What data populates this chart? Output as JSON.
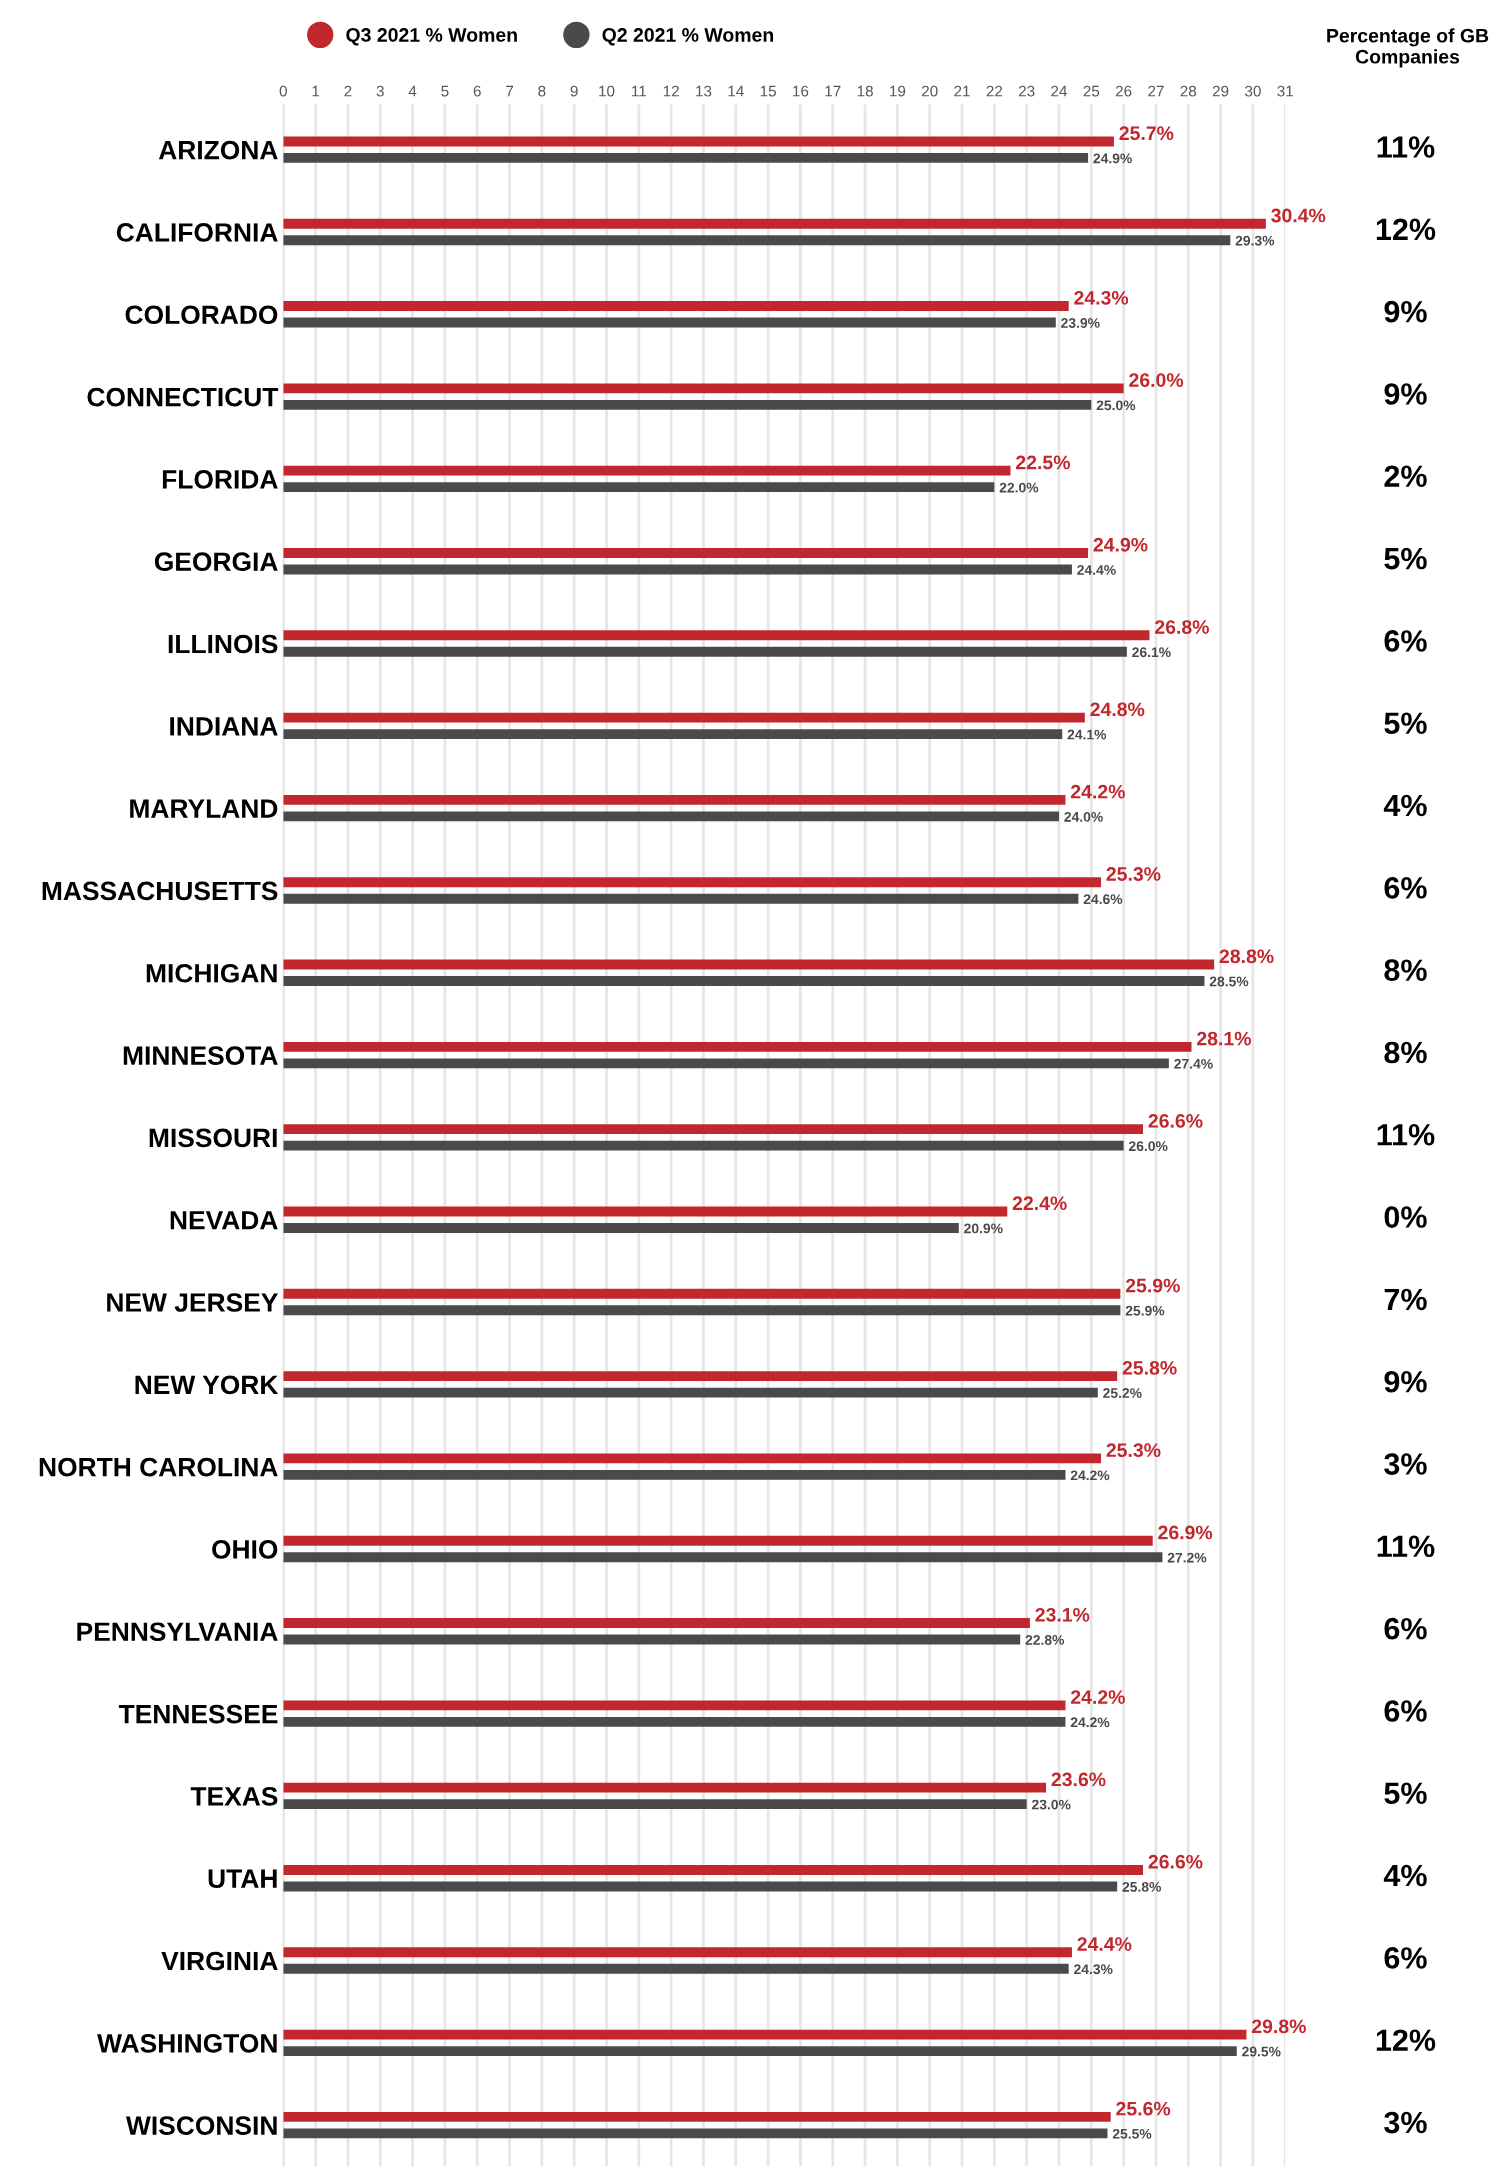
{
  "chart_data": {
    "type": "bar",
    "orientation": "horizontal",
    "categories": [
      "ARIZONA",
      "CALIFORNIA",
      "COLORADO",
      "CONNECTICUT",
      "FLORIDA",
      "GEORGIA",
      "ILLINOIS",
      "INDIANA",
      "MARYLAND",
      "MASSACHUSETTS",
      "MICHIGAN",
      "MINNESOTA",
      "MISSOURI",
      "NEVADA",
      "NEW JERSEY",
      "NEW YORK",
      "NORTH CAROLINA",
      "OHIO",
      "PENNSYLVANIA",
      "TENNESSEE",
      "TEXAS",
      "UTAH",
      "VIRGINIA",
      "WASHINGTON",
      "WISCONSIN"
    ],
    "series": [
      {
        "name": "Q3 2021 % Women",
        "color": "#c1272d",
        "values": [
          25.7,
          30.4,
          24.3,
          26.0,
          22.5,
          24.9,
          26.8,
          24.8,
          24.2,
          25.3,
          28.8,
          28.1,
          26.6,
          22.4,
          25.9,
          25.8,
          25.3,
          26.9,
          23.1,
          24.2,
          23.6,
          26.6,
          24.4,
          29.8,
          25.6
        ],
        "value_labels": [
          "25.7%",
          "30.4%",
          "24.3%",
          "26.0%",
          "22.5%",
          "24.9%",
          "26.8%",
          "24.8%",
          "24.2%",
          "25.3%",
          "28.8%",
          "28.1%",
          "26.6%",
          "22.4%",
          "25.9%",
          "25.8%",
          "25.3%",
          "26.9%",
          "23.1%",
          "24.2%",
          "23.6%",
          "26.6%",
          "24.4%",
          "29.8%",
          "25.6%"
        ]
      },
      {
        "name": "Q2 2021 % Women",
        "color": "#4a4a4a",
        "values": [
          24.9,
          29.3,
          23.9,
          25.0,
          22.0,
          24.4,
          26.1,
          24.1,
          24.0,
          24.6,
          28.5,
          27.4,
          26.0,
          20.9,
          25.9,
          25.2,
          24.2,
          27.2,
          22.8,
          24.2,
          23.0,
          25.8,
          24.3,
          29.5,
          25.5
        ],
        "value_labels": [
          "24.9%",
          "29.3%",
          "23.9%",
          "25.0%",
          "22.0%",
          "24.4%",
          "26.1%",
          "24.1%",
          "24.0%",
          "24.6%",
          "28.5%",
          "27.4%",
          "26.0%",
          "20.9%",
          "25.9%",
          "25.2%",
          "24.2%",
          "27.2%",
          "22.8%",
          "24.2%",
          "23.0%",
          "25.8%",
          "24.3%",
          "29.5%",
          "25.5%"
        ]
      }
    ],
    "xlim": [
      0,
      31
    ],
    "xticks": [
      0,
      1,
      2,
      3,
      4,
      5,
      6,
      7,
      8,
      9,
      10,
      11,
      12,
      13,
      14,
      15,
      16,
      17,
      18,
      19,
      20,
      21,
      22,
      23,
      24,
      25,
      26,
      27,
      28,
      29,
      30,
      31
    ],
    "grid": "x",
    "legend": "top",
    "annotations": [
      "Percentage of GB Companies",
      "11%",
      "12%",
      "9%",
      "9%",
      "2%",
      "5%",
      "6%",
      "5%",
      "4%",
      "6%",
      "8%",
      "8%",
      "11%",
      "0%",
      "7%",
      "9%",
      "3%",
      "11%",
      "6%",
      "6%",
      "5%",
      "4%",
      "6%",
      "12%",
      "3%"
    ]
  }
}
